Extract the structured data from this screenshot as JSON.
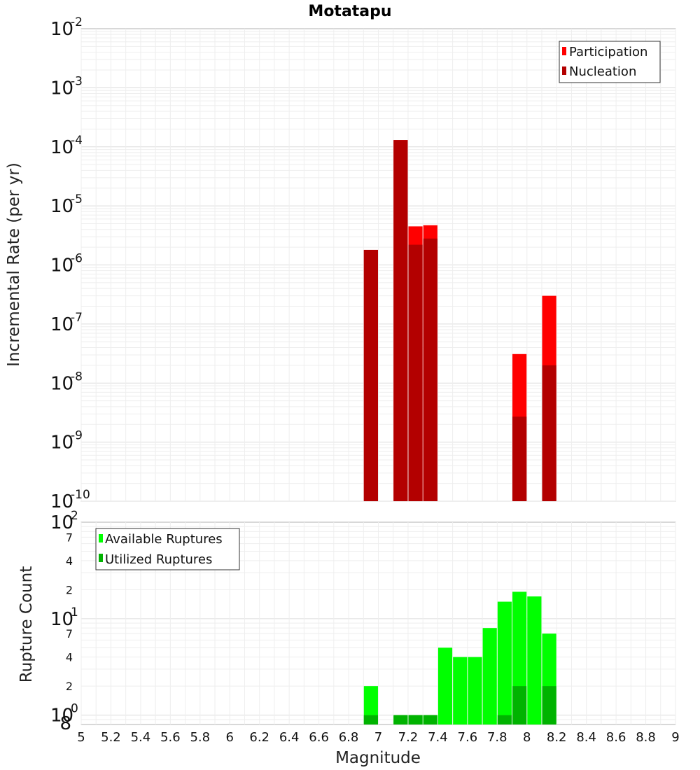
{
  "chart_data": [
    {
      "type": "bar",
      "title": "Motatapu",
      "xlabel": "",
      "ylabel": "Incremental Rate (per yr)",
      "yscale": "log",
      "ylim": [
        1e-10,
        0.01
      ],
      "xlim": [
        5,
        9
      ],
      "grid": true,
      "legend_position": "top-right",
      "y_tick_labels": [
        {
          "base": "10",
          "exp": "-10"
        },
        {
          "base": "10",
          "exp": "-9"
        },
        {
          "base": "10",
          "exp": "-8"
        },
        {
          "base": "10",
          "exp": "-7"
        },
        {
          "base": "10",
          "exp": "-6"
        },
        {
          "base": "10",
          "exp": "-5"
        },
        {
          "base": "10",
          "exp": "-4"
        },
        {
          "base": "10",
          "exp": "-3"
        },
        {
          "base": "10",
          "exp": "-2"
        }
      ],
      "series": [
        {
          "name": "Participation",
          "color": "#ff0000",
          "x": [
            6.95,
            7.15,
            7.25,
            7.35,
            7.95,
            8.15
          ],
          "values": [
            1.8e-06,
            0.00013,
            4.5e-06,
            4.7e-06,
            3.1e-08,
            3e-07
          ]
        },
        {
          "name": "Nucleation",
          "color": "#b30000",
          "x": [
            6.95,
            7.15,
            7.25,
            7.35,
            7.95,
            8.15
          ],
          "values": [
            1.8e-06,
            0.00013,
            2.2e-06,
            2.8e-06,
            2.7e-09,
            2e-08
          ]
        }
      ]
    },
    {
      "type": "bar",
      "xlabel": "Magnitude",
      "ylabel": "Rupture Count",
      "yscale": "log",
      "ylim": [
        0.8,
        100
      ],
      "xlim": [
        5,
        9
      ],
      "grid": true,
      "legend_position": "top-left",
      "x_tick_labels": [
        "5",
        "5.2",
        "5.4",
        "5.6",
        "5.8",
        "6",
        "6.2",
        "6.4",
        "6.6",
        "6.8",
        "7",
        "7.2",
        "7.4",
        "7.6",
        "7.8",
        "8",
        "8.2",
        "8.4",
        "8.6",
        "8.8",
        "9"
      ],
      "y_tick_labels": [
        {
          "base": "10",
          "exp": "0"
        },
        {
          "base": "10",
          "exp": "1"
        },
        {
          "base": "10",
          "exp": "2"
        }
      ],
      "y_minor_tick_labels": [
        {
          "value": 0.8,
          "label": "8"
        },
        {
          "value": 2,
          "label": "2"
        },
        {
          "value": 4,
          "label": "4"
        },
        {
          "value": 7,
          "label": "7"
        },
        {
          "value": 20,
          "label": "2"
        },
        {
          "value": 40,
          "label": "4"
        },
        {
          "value": 70,
          "label": "7"
        }
      ],
      "series": [
        {
          "name": "Available Ruptures",
          "color": "#00ff00",
          "x": [
            6.95,
            7.15,
            7.25,
            7.35,
            7.45,
            7.55,
            7.65,
            7.75,
            7.85,
            7.95,
            8.05,
            8.15
          ],
          "values": [
            2,
            1,
            1,
            1,
            5,
            4,
            4,
            8,
            15,
            19,
            17,
            7
          ]
        },
        {
          "name": "Utilized Ruptures",
          "color": "#00b300",
          "x": [
            6.95,
            7.15,
            7.25,
            7.35,
            7.85,
            7.95,
            8.15
          ],
          "values": [
            1,
            1,
            1,
            1,
            1,
            2,
            2
          ]
        }
      ]
    }
  ]
}
